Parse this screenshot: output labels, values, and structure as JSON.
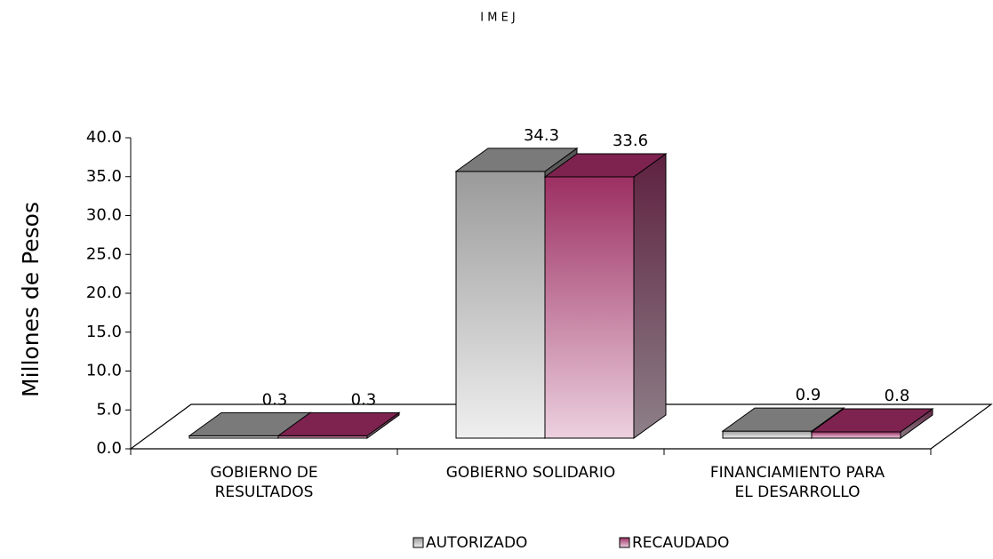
{
  "chart_data": {
    "type": "bar3d",
    "title": "I M E J",
    "y_label": "Millones de Pesos",
    "categories": [
      [
        "GOBIERNO DE",
        "RESULTADOS"
      ],
      [
        "GOBIERNO SOLIDARIO"
      ],
      [
        "FINANCIAMIENTO PARA",
        "EL DESARROLLO"
      ]
    ],
    "series": [
      {
        "name": "AUTORIZADO",
        "color": "#7a7a7a",
        "values": [
          0.3,
          34.3,
          0.9
        ]
      },
      {
        "name": "RECAUDADO",
        "color": "#7e2350",
        "values": [
          0.3,
          33.6,
          0.8
        ]
      }
    ],
    "ylim": [
      0,
      40
    ],
    "yticks": [
      {
        "value": 0,
        "label": "0.0"
      },
      {
        "value": 5,
        "label": "5.0"
      },
      {
        "value": 10,
        "label": "10.0"
      },
      {
        "value": 15,
        "label": "15.0"
      },
      {
        "value": 20,
        "label": "20.0"
      },
      {
        "value": 25,
        "label": "25.0"
      },
      {
        "value": 30,
        "label": "30.0"
      },
      {
        "value": 35,
        "label": "35.0"
      },
      {
        "value": 40,
        "label": "40.0"
      }
    ],
    "legend": "bottom"
  }
}
